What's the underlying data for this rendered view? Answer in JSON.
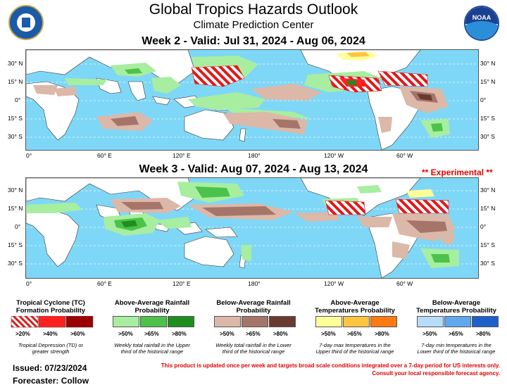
{
  "header": {
    "title": "Global Tropics Hazards Outlook",
    "subtitle": "Climate Prediction Center",
    "noaa_logo_text": "NOAA"
  },
  "week2": {
    "title": "Week 2 - Valid: Jul 31, 2024 - Aug 06, 2024"
  },
  "week3": {
    "title": "Week 3 - Valid: Aug 07, 2024 - Aug 13, 2024",
    "experimental": "** Experimental **"
  },
  "axes": {
    "lat_left": [
      "30° N",
      "15° N",
      "0°",
      "15° S",
      "30° S"
    ],
    "lat_right": [
      "30° N",
      "15° N",
      "0°",
      "15° S",
      "30° S"
    ],
    "lon": [
      "0°",
      "60° E",
      "120° E",
      "180°",
      "120° W",
      "60° W"
    ]
  },
  "legend": {
    "tc": {
      "title": "Tropical Cyclone (TC) Formation Probability",
      "labels": [
        ">20%",
        ">40%",
        ">60%"
      ],
      "desc": "Tropical Depression (TD) or greater strength"
    },
    "above_rain": {
      "title": "Above-Average Rainfall Probability",
      "labels": [
        ">50%",
        ">65%",
        ">80%"
      ],
      "desc": "Weekly total rainfall in the Upper third of the historical range"
    },
    "below_rain": {
      "title": "Below-Average Rainfall Probability",
      "labels": [
        ">50%",
        ">65%",
        ">80%"
      ],
      "desc": "Weekly total rainfall in the Lower third of the historical range"
    },
    "above_temp": {
      "title": "Above-Average Temperatures Probability",
      "labels": [
        ">50%",
        ">65%",
        ">80%"
      ],
      "desc": "7-day max temperatures in the Upper third of the historical range"
    },
    "below_temp": {
      "title": "Below-Average Temperatures Probability",
      "labels": [
        ">50%",
        ">65%",
        ">80%"
      ],
      "desc": "7-day min temperatures in the Lower third of the historical range"
    }
  },
  "footer": {
    "issued": "Issued: 07/23/2024",
    "forecaster": "Forecaster: Collow",
    "note_line1": "This product is updated once per week and targets broad scale conditions integrated over a 7-day period for US interests only.",
    "note_line2": "Consult your local responsible forecast agency."
  },
  "colors": {
    "ocean": "#7fd7f7",
    "land": "#ffffff",
    "rain_above_50": "#a8eea0",
    "rain_above_65": "#4cc24a",
    "rain_above_80": "#1f8e1f",
    "rain_below_50": "#dcb8a8",
    "rain_below_65": "#a5756a",
    "rain_below_80": "#6a3a30",
    "tc_40": "#ff2020",
    "tc_60": "#9a0000",
    "temp_above_50": "#ffff99",
    "temp_above_65": "#ffc440",
    "temp_above_80": "#ff7a10",
    "temp_below_50": "#b6dcfb",
    "temp_below_65": "#5fa8f0",
    "temp_below_80": "#1f5fcc"
  }
}
